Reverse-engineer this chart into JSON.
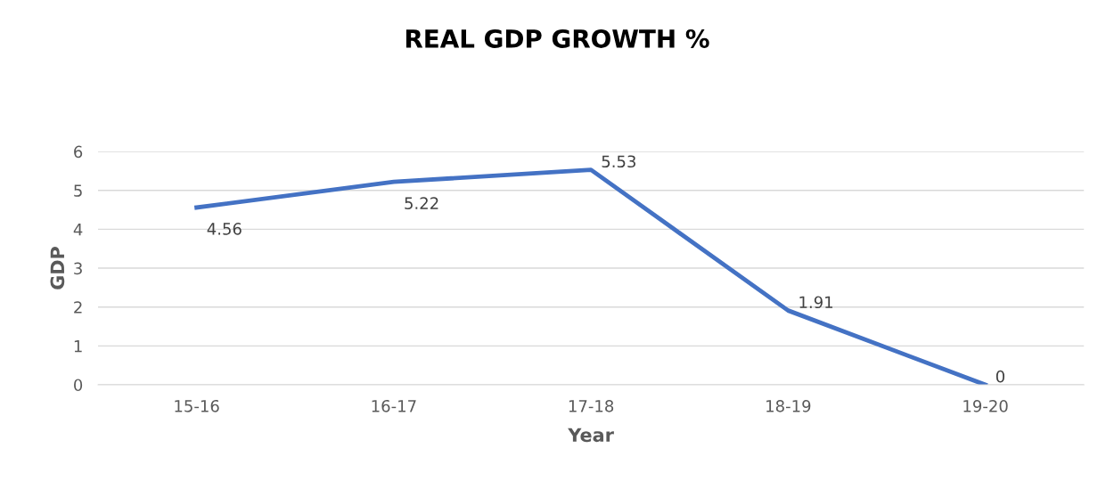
{
  "chart_data": {
    "type": "line",
    "title": "REAL GDP GROWTH %",
    "xlabel": "Year",
    "ylabel": "GDP",
    "categories": [
      "15-16",
      "16-17",
      "17-18",
      "18-19",
      "19-20"
    ],
    "series": [
      {
        "color": "#4472c4",
        "values": [
          4.56,
          5.22,
          5.53,
          1.91,
          0
        ]
      }
    ],
    "ylim": [
      0,
      6
    ],
    "yticks": [
      0,
      1,
      2,
      3,
      4,
      5,
      6
    ],
    "grid": "y",
    "data_labels": true,
    "marker": "none",
    "line_style": "solid"
  }
}
